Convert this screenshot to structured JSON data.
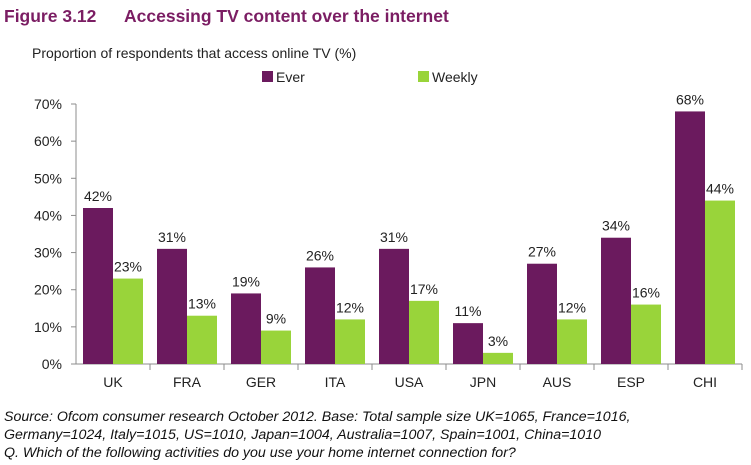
{
  "figure": {
    "number": "Figure 3.12",
    "title": "Accessing TV content over the internet"
  },
  "colors": {
    "ever": "#6b1a5e",
    "weekly": "#99d43a",
    "title": "#7b1d63"
  },
  "chart_data": {
    "type": "bar",
    "title": "Proportion of respondents that access online TV (%)",
    "xlabel": "",
    "ylabel": "",
    "categories": [
      "UK",
      "FRA",
      "GER",
      "ITA",
      "USA",
      "JPN",
      "AUS",
      "ESP",
      "CHI"
    ],
    "series": [
      {
        "name": "Ever",
        "values": [
          42,
          31,
          19,
          26,
          31,
          11,
          27,
          34,
          68
        ],
        "labels": [
          "42%",
          "31%",
          "19%",
          "26%",
          "31%",
          "11%",
          "27%",
          "34%",
          "68%"
        ]
      },
      {
        "name": "Weekly",
        "values": [
          23,
          13,
          9,
          12,
          17,
          3,
          12,
          16,
          44
        ],
        "labels": [
          "23%",
          "13%",
          "9%",
          "12%",
          "17%",
          "3%",
          "12%",
          "16%",
          "44%"
        ]
      }
    ],
    "ylim": [
      0,
      70
    ],
    "yticks": [
      0,
      10,
      20,
      30,
      40,
      50,
      60,
      70
    ],
    "ytick_labels": [
      "0%",
      "10%",
      "20%",
      "30%",
      "40%",
      "50%",
      "60%",
      "70%"
    ],
    "grid": false,
    "legend": "top-center"
  },
  "source": {
    "line1": "Source: Ofcom consumer research October 2012. Base: Total sample size UK=1065, France=1016,",
    "line2": "Germany=1024, Italy=1015, US=1010, Japan=1004, Australia=1007, Spain=1001, China=1010",
    "line3": "Q. Which of the following activities do you use your home internet connection for?"
  }
}
